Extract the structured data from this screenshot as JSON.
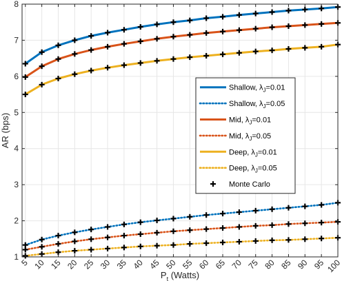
{
  "chart_data": {
    "type": "line",
    "xlabel": "P",
    "xlabel_sub": "t",
    "xlabel_unit": " (Watts)",
    "ylabel": "AR (bps)",
    "xlim": [
      4,
      100
    ],
    "ylim": [
      1,
      8
    ],
    "grid": true,
    "legend_placement": "right",
    "x": [
      5,
      10,
      15,
      20,
      25,
      30,
      35,
      40,
      45,
      50,
      55,
      60,
      65,
      70,
      75,
      80,
      85,
      90,
      95,
      100
    ],
    "x_ticks": [
      "5",
      "10",
      "15",
      "20",
      "25",
      "30",
      "35",
      "40",
      "45",
      "50",
      "55",
      "60",
      "65",
      "70",
      "75",
      "80",
      "85",
      "90",
      "95",
      "100"
    ],
    "y_ticks": [
      "1",
      "2",
      "3",
      "4",
      "5",
      "6",
      "7",
      "8"
    ],
    "series": [
      {
        "label_main": "Shallow, ",
        "label_sym": "λ",
        "label_sub": "J",
        "label_tail": "=0.01",
        "color": "#0072BD",
        "dash": "solid",
        "values": [
          6.35,
          6.67,
          6.86,
          7.0,
          7.12,
          7.21,
          7.29,
          7.37,
          7.44,
          7.5,
          7.55,
          7.61,
          7.65,
          7.7,
          7.74,
          7.78,
          7.82,
          7.85,
          7.88,
          7.92
        ]
      },
      {
        "label_main": "Shallow, ",
        "label_sym": "λ",
        "label_sub": "J",
        "label_tail": "=0.05",
        "color": "#0072BD",
        "dash": "dotted",
        "values": [
          1.33,
          1.48,
          1.59,
          1.68,
          1.76,
          1.83,
          1.9,
          1.96,
          2.01,
          2.06,
          2.11,
          2.16,
          2.2,
          2.24,
          2.28,
          2.32,
          2.36,
          2.4,
          2.44,
          2.5
        ]
      },
      {
        "label_main": "Mid, ",
        "label_sym": "λ",
        "label_sub": "J",
        "label_tail": "=0.01",
        "color": "#D95319",
        "dash": "solid",
        "values": [
          5.98,
          6.28,
          6.48,
          6.62,
          6.73,
          6.82,
          6.9,
          6.97,
          7.04,
          7.1,
          7.15,
          7.2,
          7.24,
          7.28,
          7.32,
          7.36,
          7.39,
          7.42,
          7.45,
          7.48
        ]
      },
      {
        "label_main": "Mid, ",
        "label_sym": "λ",
        "label_sub": "J",
        "label_tail": "=0.05",
        "color": "#D95319",
        "dash": "dotted",
        "values": [
          1.2,
          1.28,
          1.36,
          1.43,
          1.49,
          1.54,
          1.59,
          1.63,
          1.67,
          1.71,
          1.74,
          1.77,
          1.8,
          1.83,
          1.86,
          1.88,
          1.91,
          1.93,
          1.95,
          1.97
        ]
      },
      {
        "label_main": "Deep, ",
        "label_sym": "λ",
        "label_sub": "J",
        "label_tail": "=0.01",
        "color": "#EDB120",
        "dash": "solid",
        "values": [
          5.5,
          5.77,
          5.94,
          6.06,
          6.16,
          6.24,
          6.31,
          6.37,
          6.43,
          6.48,
          6.53,
          6.57,
          6.61,
          6.65,
          6.69,
          6.72,
          6.76,
          6.79,
          6.82,
          6.88
        ]
      },
      {
        "label_main": "Deep, ",
        "label_sym": "λ",
        "label_sub": "J",
        "label_tail": "=0.05",
        "color": "#EDB120",
        "dash": "dotted",
        "values": [
          1.03,
          1.08,
          1.13,
          1.17,
          1.2,
          1.23,
          1.26,
          1.29,
          1.31,
          1.33,
          1.36,
          1.38,
          1.4,
          1.42,
          1.44,
          1.46,
          1.47,
          1.49,
          1.51,
          1.53
        ]
      }
    ],
    "markers": {
      "label": "Monte Carlo",
      "color": "#000000",
      "symbol": "plus"
    }
  }
}
